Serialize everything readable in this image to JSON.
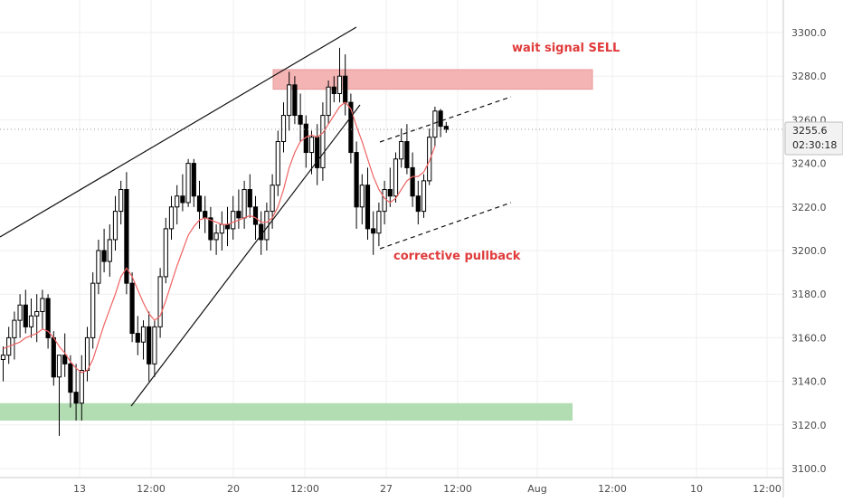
{
  "chart_data": {
    "type": "candlestick",
    "title": "",
    "xlabel": "",
    "ylabel": "",
    "ylim": [
      3098,
      3318
    ],
    "y_ticks": [
      3100,
      3120,
      3140,
      3160,
      3180,
      3200,
      3220,
      3240,
      3260,
      3280,
      3300
    ],
    "y_tick_labels": [
      "3100.0",
      "3120.0",
      "3140.0",
      "3160.0",
      "3180.0",
      "3200.0",
      "3220.0",
      "3240.0",
      "3260.0",
      "3280.0",
      "3300.0"
    ],
    "x_tick_labels": [
      "13",
      "12:00",
      "20",
      "12:00",
      "27",
      "12:00",
      "Aug",
      "12:00",
      "10",
      "12:00"
    ],
    "current_price_label": "3255.6",
    "countdown_label": "02:30:18",
    "grid": true,
    "colors": {
      "up": "#ffffff",
      "down": "#000000",
      "wick": "#000000",
      "ma": "#f06262",
      "resistance_zone": "#f4b4b4",
      "support_zone": "#b2dcb2",
      "annotation_text": "#e03a3a",
      "grid": "#efefef",
      "axis_text": "#4a4a4a",
      "price_label_bg": "#f2f2f2"
    },
    "candles": [
      {
        "o": 3150,
        "h": 3156,
        "l": 3140,
        "c": 3152
      },
      {
        "o": 3152,
        "h": 3165,
        "l": 3148,
        "c": 3160
      },
      {
        "o": 3160,
        "h": 3172,
        "l": 3150,
        "c": 3168
      },
      {
        "o": 3168,
        "h": 3180,
        "l": 3160,
        "c": 3175
      },
      {
        "o": 3175,
        "h": 3182,
        "l": 3162,
        "c": 3165
      },
      {
        "o": 3165,
        "h": 3178,
        "l": 3160,
        "c": 3170
      },
      {
        "o": 3170,
        "h": 3180,
        "l": 3158,
        "c": 3172
      },
      {
        "o": 3172,
        "h": 3182,
        "l": 3164,
        "c": 3178
      },
      {
        "o": 3178,
        "h": 3180,
        "l": 3155,
        "c": 3160
      },
      {
        "o": 3160,
        "h": 3163,
        "l": 3138,
        "c": 3142
      },
      {
        "o": 3142,
        "h": 3150,
        "l": 3115,
        "c": 3152
      },
      {
        "o": 3152,
        "h": 3162,
        "l": 3142,
        "c": 3148
      },
      {
        "o": 3148,
        "h": 3152,
        "l": 3128,
        "c": 3135
      },
      {
        "o": 3135,
        "h": 3148,
        "l": 3122,
        "c": 3130
      },
      {
        "o": 3130,
        "h": 3152,
        "l": 3122,
        "c": 3145
      },
      {
        "o": 3145,
        "h": 3165,
        "l": 3140,
        "c": 3160
      },
      {
        "o": 3160,
        "h": 3190,
        "l": 3155,
        "c": 3185
      },
      {
        "o": 3185,
        "h": 3205,
        "l": 3180,
        "c": 3200
      },
      {
        "o": 3200,
        "h": 3210,
        "l": 3190,
        "c": 3195
      },
      {
        "o": 3195,
        "h": 3212,
        "l": 3188,
        "c": 3205
      },
      {
        "o": 3205,
        "h": 3225,
        "l": 3200,
        "c": 3218
      },
      {
        "o": 3218,
        "h": 3232,
        "l": 3212,
        "c": 3228
      },
      {
        "o": 3228,
        "h": 3236,
        "l": 3180,
        "c": 3185
      },
      {
        "o": 3185,
        "h": 3190,
        "l": 3158,
        "c": 3162
      },
      {
        "o": 3162,
        "h": 3170,
        "l": 3152,
        "c": 3158
      },
      {
        "o": 3158,
        "h": 3168,
        "l": 3150,
        "c": 3165
      },
      {
        "o": 3165,
        "h": 3172,
        "l": 3140,
        "c": 3148
      },
      {
        "o": 3148,
        "h": 3168,
        "l": 3142,
        "c": 3165
      },
      {
        "o": 3165,
        "h": 3192,
        "l": 3160,
        "c": 3188
      },
      {
        "o": 3188,
        "h": 3215,
        "l": 3185,
        "c": 3210
      },
      {
        "o": 3210,
        "h": 3225,
        "l": 3205,
        "c": 3220
      },
      {
        "o": 3220,
        "h": 3230,
        "l": 3212,
        "c": 3225
      },
      {
        "o": 3225,
        "h": 3235,
        "l": 3218,
        "c": 3222
      },
      {
        "o": 3222,
        "h": 3242,
        "l": 3220,
        "c": 3240
      },
      {
        "o": 3240,
        "h": 3242,
        "l": 3220,
        "c": 3225
      },
      {
        "o": 3225,
        "h": 3232,
        "l": 3210,
        "c": 3218
      },
      {
        "o": 3218,
        "h": 3225,
        "l": 3208,
        "c": 3215
      },
      {
        "o": 3215,
        "h": 3220,
        "l": 3200,
        "c": 3205
      },
      {
        "o": 3205,
        "h": 3212,
        "l": 3198,
        "c": 3208
      },
      {
        "o": 3208,
        "h": 3218,
        "l": 3200,
        "c": 3212
      },
      {
        "o": 3212,
        "h": 3220,
        "l": 3202,
        "c": 3210
      },
      {
        "o": 3210,
        "h": 3225,
        "l": 3205,
        "c": 3218
      },
      {
        "o": 3218,
        "h": 3228,
        "l": 3210,
        "c": 3215
      },
      {
        "o": 3215,
        "h": 3232,
        "l": 3210,
        "c": 3228
      },
      {
        "o": 3228,
        "h": 3235,
        "l": 3215,
        "c": 3220
      },
      {
        "o": 3220,
        "h": 3225,
        "l": 3205,
        "c": 3212
      },
      {
        "o": 3212,
        "h": 3218,
        "l": 3198,
        "c": 3205
      },
      {
        "o": 3205,
        "h": 3222,
        "l": 3200,
        "c": 3218
      },
      {
        "o": 3218,
        "h": 3235,
        "l": 3210,
        "c": 3230
      },
      {
        "o": 3230,
        "h": 3255,
        "l": 3225,
        "c": 3250
      },
      {
        "o": 3250,
        "h": 3268,
        "l": 3245,
        "c": 3262
      },
      {
        "o": 3262,
        "h": 3282,
        "l": 3255,
        "c": 3276
      },
      {
        "o": 3276,
        "h": 3280,
        "l": 3258,
        "c": 3262
      },
      {
        "o": 3262,
        "h": 3272,
        "l": 3250,
        "c": 3258
      },
      {
        "o": 3258,
        "h": 3262,
        "l": 3238,
        "c": 3245
      },
      {
        "o": 3245,
        "h": 3255,
        "l": 3235,
        "c": 3252
      },
      {
        "o": 3252,
        "h": 3258,
        "l": 3230,
        "c": 3238
      },
      {
        "o": 3238,
        "h": 3268,
        "l": 3232,
        "c": 3262
      },
      {
        "o": 3262,
        "h": 3278,
        "l": 3258,
        "c": 3275
      },
      {
        "o": 3275,
        "h": 3280,
        "l": 3268,
        "c": 3272
      },
      {
        "o": 3272,
        "h": 3293,
        "l": 3268,
        "c": 3280
      },
      {
        "o": 3280,
        "h": 3290,
        "l": 3262,
        "c": 3268
      },
      {
        "o": 3268,
        "h": 3272,
        "l": 3240,
        "c": 3245
      },
      {
        "o": 3245,
        "h": 3250,
        "l": 3210,
        "c": 3220
      },
      {
        "o": 3220,
        "h": 3235,
        "l": 3212,
        "c": 3230
      },
      {
        "o": 3230,
        "h": 3238,
        "l": 3205,
        "c": 3210
      },
      {
        "o": 3210,
        "h": 3218,
        "l": 3198,
        "c": 3208
      },
      {
        "o": 3208,
        "h": 3222,
        "l": 3202,
        "c": 3218
      },
      {
        "o": 3218,
        "h": 3232,
        "l": 3212,
        "c": 3228
      },
      {
        "o": 3228,
        "h": 3238,
        "l": 3220,
        "c": 3225
      },
      {
        "o": 3225,
        "h": 3245,
        "l": 3222,
        "c": 3242
      },
      {
        "o": 3242,
        "h": 3256,
        "l": 3238,
        "c": 3250
      },
      {
        "o": 3250,
        "h": 3258,
        "l": 3235,
        "c": 3238
      },
      {
        "o": 3238,
        "h": 3245,
        "l": 3220,
        "c": 3225
      },
      {
        "o": 3225,
        "h": 3232,
        "l": 3212,
        "c": 3218
      },
      {
        "o": 3218,
        "h": 3235,
        "l": 3215,
        "c": 3232
      },
      {
        "o": 3232,
        "h": 3256,
        "l": 3230,
        "c": 3252
      },
      {
        "o": 3252,
        "h": 3266,
        "l": 3248,
        "c": 3264
      },
      {
        "o": 3264,
        "h": 3265,
        "l": 3252,
        "c": 3257
      },
      {
        "o": 3257,
        "h": 3259,
        "l": 3254,
        "c": 3255.6
      }
    ],
    "moving_average": {
      "line_style": "thin red line through the candles",
      "values": [
        3155,
        3156,
        3157,
        3158,
        3160,
        3161,
        3162,
        3164,
        3163,
        3160,
        3156,
        3153,
        3149,
        3146,
        3144,
        3145,
        3150,
        3158,
        3166,
        3173,
        3180,
        3188,
        3192,
        3188,
        3182,
        3176,
        3171,
        3168,
        3170,
        3177,
        3185,
        3193,
        3200,
        3207,
        3211,
        3214,
        3215,
        3214,
        3213,
        3212,
        3212,
        3213,
        3214,
        3215,
        3216,
        3215,
        3213,
        3213,
        3215,
        3220,
        3228,
        3238,
        3245,
        3250,
        3252,
        3253,
        3252,
        3254,
        3258,
        3262,
        3266,
        3268,
        3265,
        3257,
        3250,
        3242,
        3234,
        3228,
        3224,
        3222,
        3224,
        3228,
        3232,
        3234,
        3234,
        3236,
        3241,
        3248
      ]
    },
    "annotations": [
      {
        "name": "resistance-zone",
        "kind": "zone",
        "y_low": 3274,
        "y_high": 3283,
        "label": "wait signal SELL"
      },
      {
        "name": "support-zone",
        "kind": "zone",
        "y_low": 3122,
        "y_high": 3130,
        "label": ""
      },
      {
        "name": "rising-channel",
        "kind": "channel",
        "label": "corrective pullback"
      },
      {
        "name": "rising-wedge-upper",
        "kind": "trendline",
        "label": ""
      },
      {
        "name": "rising-wedge-lower",
        "kind": "trendline",
        "label": ""
      }
    ]
  }
}
